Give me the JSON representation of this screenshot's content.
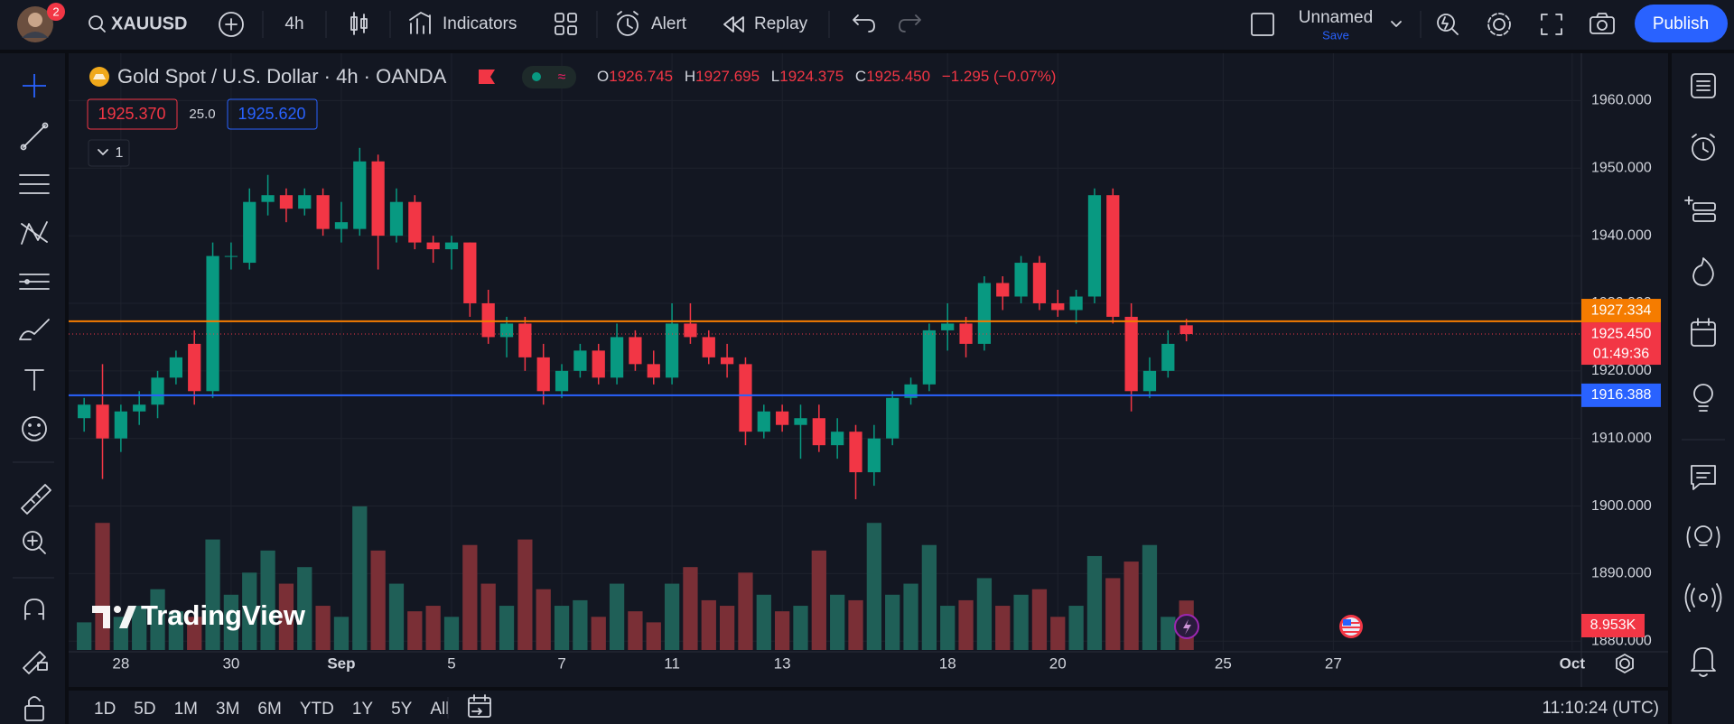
{
  "toolbar": {
    "badge": "2",
    "symbol": "XAUUSD",
    "interval": "4h",
    "indicators": "Indicators",
    "alert": "Alert",
    "replay": "Replay",
    "layout_name": "Unnamed",
    "save": "Save",
    "publish": "Publish"
  },
  "legend": {
    "title": "Gold Spot / U.S. Dollar · 4h · OANDA",
    "open_label": "O",
    "open": "1926.745",
    "high_label": "H",
    "high": "1927.695",
    "low_label": "L",
    "low": "1924.375",
    "close_label": "C",
    "close": "1925.450",
    "change": "−1.295 (−0.07%)",
    "bid": "1925.370",
    "spread": "25.0",
    "ask": "1925.620",
    "indicator_count": "1"
  },
  "watermark": "TradingView",
  "bottom_bar": {
    "ranges": [
      "1D",
      "5D",
      "1M",
      "3M",
      "6M",
      "YTD",
      "1Y",
      "5Y",
      "All"
    ],
    "clock": "11:10:24 (UTC)"
  },
  "chart_data": {
    "type": "candlestick",
    "categories": [
      null,
      null,
      "28",
      null,
      null,
      null,
      null,
      null,
      "30",
      null,
      null,
      null,
      null,
      null,
      "Sep",
      null,
      null,
      null,
      null,
      null,
      "5",
      null,
      null,
      null,
      null,
      null,
      "7",
      null,
      null,
      null,
      null,
      null,
      "11",
      null,
      null,
      null,
      null,
      null,
      "13",
      null,
      null,
      null,
      null,
      null,
      null,
      null,
      null,
      "18",
      null,
      null,
      null,
      null,
      null,
      "20",
      null,
      null,
      null,
      null,
      null,
      null,
      null,
      null,
      "25",
      null,
      null,
      null,
      null,
      null,
      "27",
      null,
      null,
      null,
      null,
      null,
      null,
      null,
      null,
      null,
      null,
      null,
      null,
      "Oct"
    ],
    "open": [
      1913,
      1915,
      1910,
      1914,
      1915,
      1919,
      1924,
      1917,
      1937,
      1936,
      1945,
      1946,
      1944,
      1946,
      1941,
      1941,
      1951,
      1940,
      1945,
      1939,
      1938,
      1939,
      1930,
      1925,
      1927,
      1922,
      1917,
      1920,
      1923,
      1919,
      1925,
      1921,
      1919,
      1927,
      1925,
      1922,
      1921,
      1911,
      1914,
      1912,
      1913,
      1909,
      1911,
      1905,
      1910,
      1916,
      1918,
      1926,
      1927,
      1924,
      1933,
      1931,
      1936,
      1930,
      1929,
      1931,
      1946,
      1928,
      1917,
      1920,
      1926.745,
      null,
      null,
      null,
      null,
      null,
      null,
      null,
      null,
      null,
      null,
      null,
      null,
      null,
      null,
      null,
      null,
      null,
      null,
      null,
      null,
      null
    ],
    "high": [
      1916,
      1921,
      1915,
      1917,
      1920,
      1923,
      1926,
      1939,
      1939,
      1947,
      1949,
      1947,
      1947,
      1947,
      1945,
      1953,
      1952,
      1947,
      1946,
      1940,
      1940,
      1939,
      1932,
      1928,
      1928,
      1924,
      1921,
      1924,
      1924,
      1927,
      1926,
      1923,
      1930,
      1930,
      1926,
      1924,
      1922,
      1915,
      1915,
      1915,
      1915,
      1913,
      1912,
      1912,
      1917,
      1919,
      1927,
      1930,
      1928,
      1934,
      1934,
      1937,
      1937,
      1932,
      1932,
      1947,
      1947,
      1930,
      1922,
      1926,
      1927.695,
      null,
      null,
      null,
      null,
      null,
      null,
      null,
      null,
      null,
      null,
      null,
      null,
      null,
      null,
      null,
      null,
      null,
      null,
      null,
      null,
      null
    ],
    "low": [
      1911,
      1904,
      1908,
      1912,
      1913,
      1918,
      1915,
      1916,
      1935,
      1935,
      1943,
      1942,
      1943,
      1940,
      1939,
      1940,
      1935,
      1939,
      1938,
      1936,
      1935,
      1928,
      1924,
      1922,
      1920,
      1915,
      1916,
      1919,
      1918,
      1918,
      1920,
      1918,
      1918,
      1924,
      1921,
      1919,
      1909,
      1910,
      1911,
      1907,
      1908,
      1907,
      1901,
      1903,
      1909,
      1915,
      1917,
      1923,
      1922,
      1923,
      1929,
      1930,
      1929,
      1928,
      1927,
      1930,
      1927,
      1914,
      1916,
      1919,
      1924.375,
      null,
      null,
      null,
      null,
      null,
      null,
      null,
      null,
      null,
      null,
      null,
      null,
      null,
      null,
      null,
      null,
      null,
      null,
      null,
      null,
      null
    ],
    "close": [
      1915,
      1910,
      1914,
      1915,
      1919,
      1922,
      1917,
      1937,
      1937,
      1945,
      1946,
      1944,
      1946,
      1941,
      1942,
      1951,
      1940,
      1945,
      1939,
      1938,
      1939,
      1930,
      1925,
      1927,
      1922,
      1917,
      1920,
      1923,
      1919,
      1925,
      1921,
      1919,
      1927,
      1925,
      1922,
      1921,
      1911,
      1914,
      1912,
      1913,
      1909,
      1911,
      1905,
      1910,
      1916,
      1918,
      1926,
      1927,
      1924,
      1933,
      1931,
      1936,
      1930,
      1929,
      1931,
      1946,
      1928,
      1917,
      1920,
      1924,
      1925.45,
      null,
      null,
      null,
      null,
      null,
      null,
      null,
      null,
      null,
      null,
      null,
      null,
      null,
      null,
      null,
      null,
      null,
      null,
      null,
      null,
      null
    ],
    "volume": [
      5,
      23,
      6,
      8,
      11,
      7,
      6,
      20,
      10,
      14,
      18,
      12,
      15,
      8,
      6,
      26,
      18,
      12,
      7,
      8,
      6,
      19,
      12,
      8,
      20,
      11,
      8,
      9,
      6,
      12,
      7,
      5,
      12,
      15,
      9,
      8,
      14,
      10,
      7,
      8,
      18,
      10,
      9,
      23,
      10,
      12,
      19,
      8,
      9,
      13,
      8,
      10,
      11,
      6,
      8,
      17,
      13,
      16,
      19,
      6,
      8.953,
      null,
      null,
      null,
      null,
      null,
      null,
      null,
      null,
      null,
      null,
      null,
      null,
      null,
      null,
      null,
      null,
      null,
      null,
      null,
      null,
      null
    ],
    "volume_label": "8.953K",
    "volume_lim": [
      0,
      108
    ],
    "ylim": [
      1878.7,
      1967
    ],
    "yticks": [
      {
        "value": 1880,
        "label": "1880.000"
      },
      {
        "value": 1890,
        "label": "1890.000"
      },
      {
        "value": 1900,
        "label": "1900.000"
      },
      {
        "value": 1910,
        "label": "1910.000"
      },
      {
        "value": 1920,
        "label": "1920.000"
      },
      {
        "value": 1930,
        "label": "1930.000"
      },
      {
        "value": 1940,
        "label": "1940.000"
      },
      {
        "value": 1950,
        "label": "1950.000"
      },
      {
        "value": 1960,
        "label": "1960.000"
      }
    ],
    "grid": true,
    "up_color": "#089981",
    "down_color": "#f23645",
    "volume_up_color": "#1f5f57",
    "volume_down_color": "#7a2f36",
    "hlines": [
      {
        "value": 1927.334,
        "label": "1927.334",
        "color": "#f57c00"
      },
      {
        "value": 1916.388,
        "label": "1916.388",
        "color": "#2962ff"
      }
    ],
    "last_price": {
      "value": 1925.45,
      "label": "1925.450",
      "countdown": "01:49:36",
      "color": "#f23645"
    }
  }
}
